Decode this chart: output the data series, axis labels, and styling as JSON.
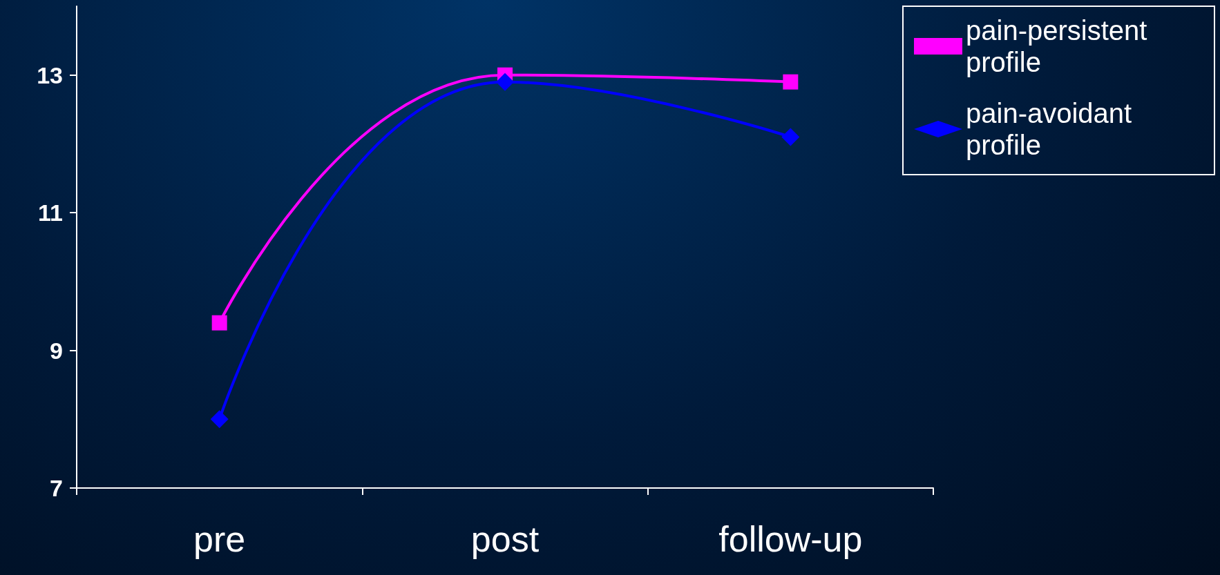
{
  "chart_data": {
    "type": "line",
    "categories": [
      "pre",
      "post",
      "follow-up"
    ],
    "series": [
      {
        "name": "pain-persistent profile",
        "color": "#ff00ff",
        "marker": "square",
        "values": [
          9.4,
          13.0,
          12.9
        ]
      },
      {
        "name": "pain-avoidant profile",
        "color": "#0000ff",
        "marker": "diamond",
        "values": [
          8.0,
          12.9,
          12.1
        ]
      }
    ],
    "ylim": [
      7,
      14
    ],
    "yticks": [
      7,
      9,
      11,
      13
    ],
    "grid": false,
    "legend": "top right"
  }
}
